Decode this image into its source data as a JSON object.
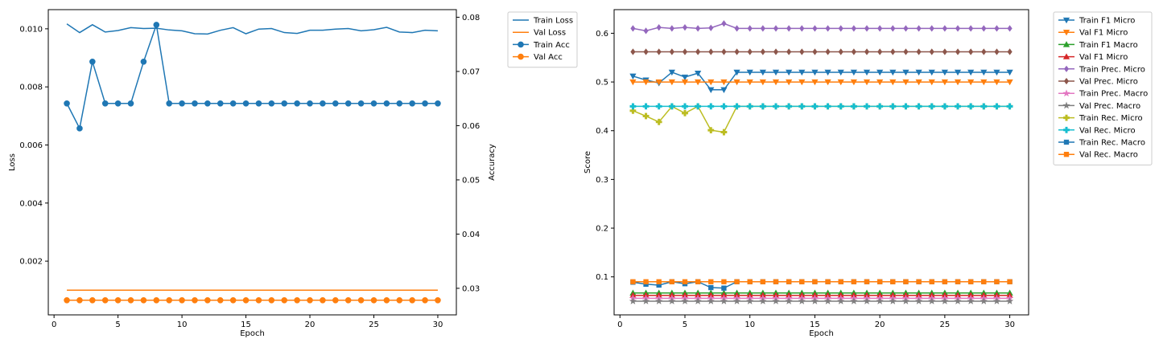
{
  "chart_data": [
    {
      "type": "line",
      "xlabel": "Epoch",
      "ylabel": "Loss",
      "y2label": "Accuracy",
      "xlim": [
        -0.45,
        31.45
      ],
      "xticks": [
        0,
        5,
        10,
        15,
        20,
        25,
        30
      ],
      "ylim": [
        0.00015,
        0.01066
      ],
      "yticks": [
        0.002,
        0.004,
        0.006,
        0.008,
        0.01
      ],
      "y2lim": [
        0.0251,
        0.0814
      ],
      "y2ticks": [
        0.03,
        0.04,
        0.05,
        0.06,
        0.07,
        0.08
      ],
      "x": [
        1,
        2,
        3,
        4,
        5,
        6,
        7,
        8,
        9,
        10,
        11,
        12,
        13,
        14,
        15,
        16,
        17,
        18,
        19,
        20,
        21,
        22,
        23,
        24,
        25,
        26,
        27,
        28,
        29,
        30
      ],
      "legend_position": "outside-right",
      "series": [
        {
          "name": "Train Loss",
          "axis": "left",
          "color": "#1f77b4",
          "marker": "none",
          "values": [
            0.01017,
            0.00987,
            0.01014,
            0.00989,
            0.00994,
            0.01004,
            0.01001,
            0.01002,
            0.00996,
            0.00993,
            0.00983,
            0.00982,
            0.00995,
            0.01004,
            0.00983,
            0.00999,
            0.01001,
            0.00987,
            0.00984,
            0.00995,
            0.00995,
            0.00999,
            0.01001,
            0.00993,
            0.00997,
            0.01005,
            0.00989,
            0.00987,
            0.00995,
            0.00993
          ]
        },
        {
          "name": "Val Loss",
          "axis": "left",
          "color": "#ff7f0e",
          "marker": "none",
          "values": [
            0.001,
            0.001,
            0.001,
            0.001,
            0.001,
            0.001,
            0.001,
            0.001,
            0.001,
            0.001,
            0.001,
            0.001,
            0.001,
            0.001,
            0.001,
            0.001,
            0.001,
            0.001,
            0.001,
            0.001,
            0.001,
            0.001,
            0.001,
            0.001,
            0.001,
            0.001,
            0.001,
            0.001,
            0.001,
            0.001
          ]
        },
        {
          "name": "Train Acc",
          "axis": "right",
          "color": "#1f77b4",
          "marker": "circle",
          "values": [
            0.0641,
            0.0595,
            0.0718,
            0.0641,
            0.0641,
            0.0641,
            0.0718,
            0.0786,
            0.0641,
            0.0641,
            0.0641,
            0.0641,
            0.0641,
            0.0641,
            0.0641,
            0.0641,
            0.0641,
            0.0641,
            0.0641,
            0.0641,
            0.0641,
            0.0641,
            0.0641,
            0.0641,
            0.0641,
            0.0641,
            0.0641,
            0.0641,
            0.0641,
            0.0641
          ]
        },
        {
          "name": "Val Acc",
          "axis": "right",
          "color": "#ff7f0e",
          "marker": "circle",
          "values": [
            0.0278,
            0.0278,
            0.0278,
            0.0278,
            0.0278,
            0.0278,
            0.0278,
            0.0278,
            0.0278,
            0.0278,
            0.0278,
            0.0278,
            0.0278,
            0.0278,
            0.0278,
            0.0278,
            0.0278,
            0.0278,
            0.0278,
            0.0278,
            0.0278,
            0.0278,
            0.0278,
            0.0278,
            0.0278,
            0.0278,
            0.0278,
            0.0278,
            0.0278,
            0.0278
          ]
        }
      ]
    },
    {
      "type": "line",
      "xlabel": "Epoch",
      "ylabel": "Score",
      "xlim": [
        -0.45,
        31.45
      ],
      "xticks": [
        0,
        5,
        10,
        15,
        20,
        25,
        30
      ],
      "ylim": [
        0.022,
        0.6485
      ],
      "yticks": [
        0.1,
        0.2,
        0.3,
        0.4,
        0.5,
        0.6
      ],
      "x": [
        1,
        2,
        3,
        4,
        5,
        6,
        7,
        8,
        9,
        10,
        11,
        12,
        13,
        14,
        15,
        16,
        17,
        18,
        19,
        20,
        21,
        22,
        23,
        24,
        25,
        26,
        27,
        28,
        29,
        30
      ],
      "legend_position": "outside-right",
      "series": [
        {
          "name": "Train F1 Micro",
          "color": "#1f77b4",
          "marker": "triangle-down",
          "values": [
            0.512,
            0.504,
            0.498,
            0.52,
            0.51,
            0.518,
            0.484,
            0.484,
            0.52,
            0.52,
            0.52,
            0.52,
            0.52,
            0.52,
            0.52,
            0.52,
            0.52,
            0.52,
            0.52,
            0.52,
            0.52,
            0.52,
            0.52,
            0.52,
            0.52,
            0.52,
            0.52,
            0.52,
            0.52,
            0.52
          ]
        },
        {
          "name": "Val F1 Micro",
          "color": "#ff7f0e",
          "marker": "triangle-down",
          "values": [
            0.5,
            0.5,
            0.5,
            0.5,
            0.5,
            0.5,
            0.5,
            0.5,
            0.5,
            0.5,
            0.5,
            0.5,
            0.5,
            0.5,
            0.5,
            0.5,
            0.5,
            0.5,
            0.5,
            0.5,
            0.5,
            0.5,
            0.5,
            0.5,
            0.5,
            0.5,
            0.5,
            0.5,
            0.5,
            0.5
          ]
        },
        {
          "name": "Train F1 Macro",
          "color": "#2ca02c",
          "marker": "triangle-up",
          "values": [
            0.067,
            0.067,
            0.067,
            0.067,
            0.067,
            0.067,
            0.067,
            0.067,
            0.067,
            0.067,
            0.067,
            0.067,
            0.067,
            0.067,
            0.067,
            0.067,
            0.067,
            0.067,
            0.067,
            0.067,
            0.067,
            0.067,
            0.067,
            0.067,
            0.067,
            0.067,
            0.067,
            0.067,
            0.067,
            0.067
          ]
        },
        {
          "name": "Val F1 Micro",
          "color": "#d62728",
          "marker": "triangle-up",
          "values": [
            0.062,
            0.062,
            0.062,
            0.062,
            0.062,
            0.062,
            0.062,
            0.062,
            0.062,
            0.062,
            0.062,
            0.062,
            0.062,
            0.062,
            0.062,
            0.062,
            0.062,
            0.062,
            0.062,
            0.062,
            0.062,
            0.062,
            0.062,
            0.062,
            0.062,
            0.062,
            0.062,
            0.062,
            0.062,
            0.062
          ]
        },
        {
          "name": "Train Prec. Micro",
          "color": "#9467bd",
          "marker": "diamond",
          "values": [
            0.61,
            0.605,
            0.612,
            0.61,
            0.612,
            0.61,
            0.611,
            0.62,
            0.61,
            0.61,
            0.61,
            0.61,
            0.61,
            0.61,
            0.61,
            0.61,
            0.61,
            0.61,
            0.61,
            0.61,
            0.61,
            0.61,
            0.61,
            0.61,
            0.61,
            0.61,
            0.61,
            0.61,
            0.61,
            0.61
          ]
        },
        {
          "name": "Val Prec. Micro",
          "color": "#8c564b",
          "marker": "diamond",
          "values": [
            0.562,
            0.562,
            0.562,
            0.562,
            0.562,
            0.562,
            0.562,
            0.562,
            0.562,
            0.562,
            0.562,
            0.562,
            0.562,
            0.562,
            0.562,
            0.562,
            0.562,
            0.562,
            0.562,
            0.562,
            0.562,
            0.562,
            0.562,
            0.562,
            0.562,
            0.562,
            0.562,
            0.562,
            0.562,
            0.562
          ]
        },
        {
          "name": "Train Prec. Macro",
          "color": "#e377c2",
          "marker": "star",
          "values": [
            0.056,
            0.056,
            0.056,
            0.056,
            0.056,
            0.056,
            0.056,
            0.056,
            0.056,
            0.056,
            0.056,
            0.056,
            0.056,
            0.056,
            0.056,
            0.056,
            0.056,
            0.056,
            0.056,
            0.056,
            0.056,
            0.056,
            0.056,
            0.056,
            0.056,
            0.056,
            0.056,
            0.056,
            0.056,
            0.056
          ]
        },
        {
          "name": "Val Prec. Macro",
          "color": "#7f7f7f",
          "marker": "star",
          "values": [
            0.05,
            0.05,
            0.05,
            0.05,
            0.05,
            0.05,
            0.05,
            0.05,
            0.05,
            0.05,
            0.05,
            0.05,
            0.05,
            0.05,
            0.05,
            0.05,
            0.05,
            0.05,
            0.05,
            0.05,
            0.05,
            0.05,
            0.05,
            0.05,
            0.05,
            0.05,
            0.05,
            0.05,
            0.05,
            0.05
          ]
        },
        {
          "name": "Train Rec. Micro",
          "color": "#bcbd22",
          "marker": "plus",
          "values": [
            0.441,
            0.43,
            0.418,
            0.45,
            0.436,
            0.45,
            0.401,
            0.397,
            0.45,
            0.45,
            0.45,
            0.45,
            0.45,
            0.45,
            0.45,
            0.45,
            0.45,
            0.45,
            0.45,
            0.45,
            0.45,
            0.45,
            0.45,
            0.45,
            0.45,
            0.45,
            0.45,
            0.45,
            0.45,
            0.45
          ]
        },
        {
          "name": "Val Rec. Micro",
          "color": "#17becf",
          "marker": "plus",
          "values": [
            0.45,
            0.45,
            0.45,
            0.45,
            0.45,
            0.45,
            0.45,
            0.45,
            0.45,
            0.45,
            0.45,
            0.45,
            0.45,
            0.45,
            0.45,
            0.45,
            0.45,
            0.45,
            0.45,
            0.45,
            0.45,
            0.45,
            0.45,
            0.45,
            0.45,
            0.45,
            0.45,
            0.45,
            0.45,
            0.45
          ]
        },
        {
          "name": "Train Rec. Macro",
          "color": "#1f77b4",
          "marker": "square",
          "values": [
            0.089,
            0.085,
            0.083,
            0.09,
            0.086,
            0.09,
            0.078,
            0.077,
            0.09,
            0.09,
            0.09,
            0.09,
            0.09,
            0.09,
            0.09,
            0.09,
            0.09,
            0.09,
            0.09,
            0.09,
            0.09,
            0.09,
            0.09,
            0.09,
            0.09,
            0.09,
            0.09,
            0.09,
            0.09,
            0.09
          ]
        },
        {
          "name": "Val Rec. Macro",
          "color": "#ff7f0e",
          "marker": "square",
          "values": [
            0.09,
            0.09,
            0.09,
            0.09,
            0.09,
            0.09,
            0.09,
            0.09,
            0.09,
            0.09,
            0.09,
            0.09,
            0.09,
            0.09,
            0.09,
            0.09,
            0.09,
            0.09,
            0.09,
            0.09,
            0.09,
            0.09,
            0.09,
            0.09,
            0.09,
            0.09,
            0.09,
            0.09,
            0.09,
            0.09
          ]
        }
      ]
    }
  ]
}
